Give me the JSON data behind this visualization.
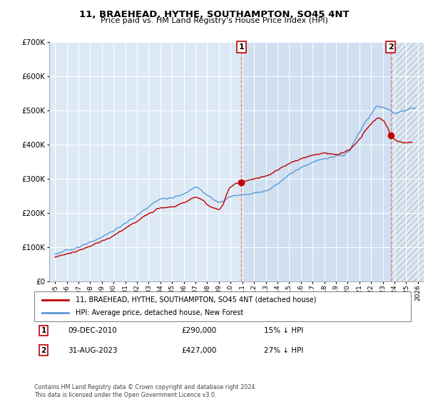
{
  "title": "11, BRAEHEAD, HYTHE, SOUTHAMPTON, SO45 4NT",
  "subtitle": "Price paid vs. HM Land Registry's House Price Index (HPI)",
  "hpi_label": "HPI: Average price, detached house, New Forest",
  "property_label": "11, BRAEHEAD, HYTHE, SOUTHAMPTON, SO45 4NT (detached house)",
  "footer": "Contains HM Land Registry data © Crown copyright and database right 2024.\nThis data is licensed under the Open Government Licence v3.0.",
  "hpi_color": "#5b9bd5",
  "property_color": "#c00000",
  "background_color": "#dce9f5",
  "grid_color": "#c8d8e8",
  "xlim_start": 1994.5,
  "xlim_end": 2026.5,
  "ylim_min": 0,
  "ylim_max": 700000,
  "yticks": [
    0,
    100000,
    200000,
    300000,
    400000,
    500000,
    600000,
    700000
  ],
  "sale1_x": 2010.92,
  "sale1_y": 290000,
  "sale2_x": 2023.67,
  "sale2_y": 427000
}
